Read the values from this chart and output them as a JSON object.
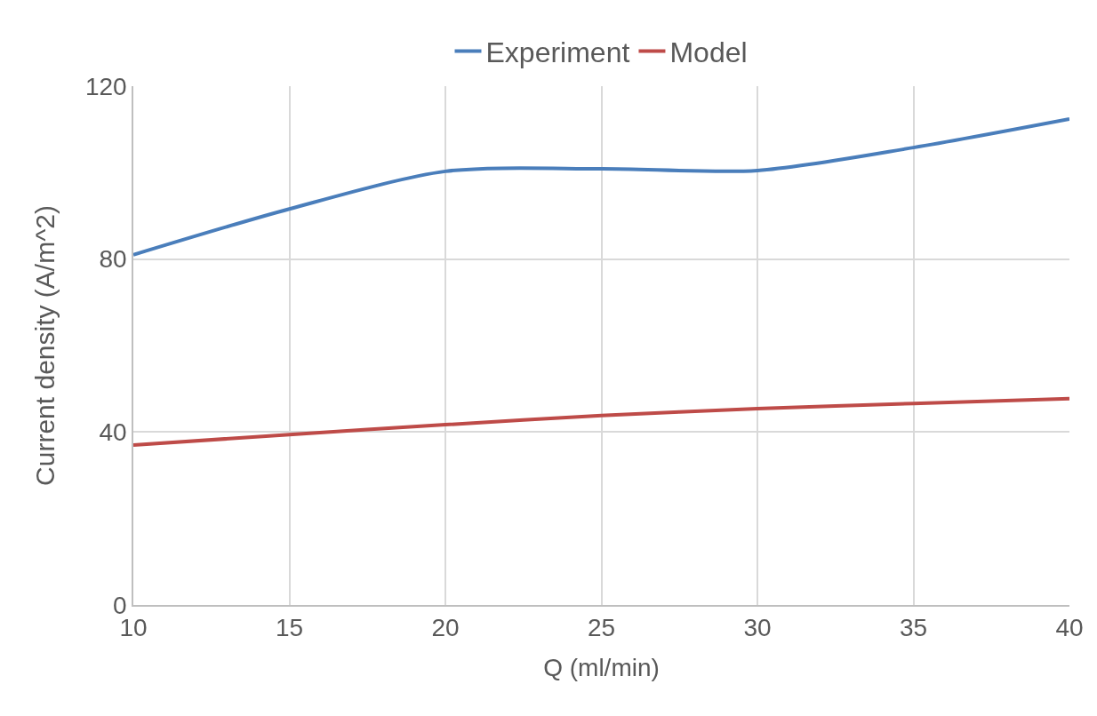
{
  "chart_data": {
    "type": "line",
    "xlabel": "Q (ml/min)",
    "ylabel": "Current density (A/m^2)",
    "x": [
      10,
      15,
      20,
      25,
      30,
      35,
      40
    ],
    "series": [
      {
        "name": "Experiment",
        "color": "#4a7ebb",
        "values": [
          81,
          91.6,
          100.3,
          100.9,
          100.5,
          105.8,
          112.4
        ]
      },
      {
        "name": "Model",
        "color": "#be4b48",
        "values": [
          37,
          39.4,
          41.7,
          43.8,
          45.4,
          46.6,
          47.7
        ]
      }
    ],
    "xlim": [
      10,
      40
    ],
    "xticks": [
      10,
      15,
      20,
      25,
      30,
      35,
      40
    ],
    "ylim": [
      0,
      120
    ],
    "yticks": [
      0,
      40,
      80,
      120
    ],
    "grid": true,
    "legend": "top",
    "marker": "none",
    "line_style": "solid"
  }
}
